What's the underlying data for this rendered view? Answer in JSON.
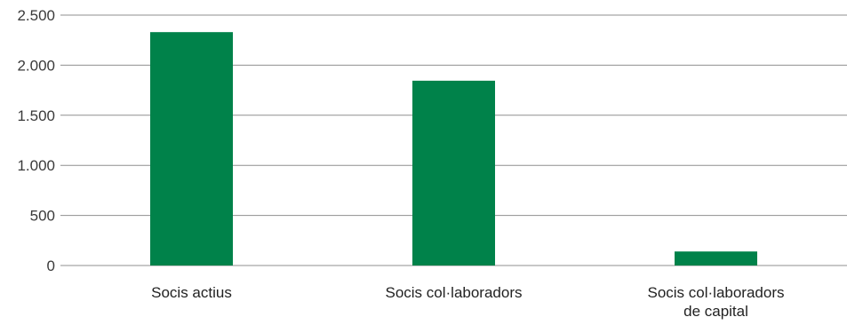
{
  "chart_data": {
    "type": "bar",
    "categories": [
      [
        "Socis actius"
      ],
      [
        "Socis col·laboradors"
      ],
      [
        "Socis col·laboradors",
        "de capital"
      ]
    ],
    "values": [
      2330,
      1845,
      140
    ],
    "ylim": [
      0,
      2500
    ],
    "yticks": [
      {
        "value": 0,
        "label": "0"
      },
      {
        "value": 500,
        "label": "500"
      },
      {
        "value": 1000,
        "label": "1.000"
      },
      {
        "value": 1500,
        "label": "1.500"
      },
      {
        "value": 2000,
        "label": "2.000"
      },
      {
        "value": 2500,
        "label": "2.500"
      }
    ],
    "grid": true,
    "title": "",
    "xlabel": "",
    "ylabel": "",
    "bar_color": "#00824a"
  }
}
